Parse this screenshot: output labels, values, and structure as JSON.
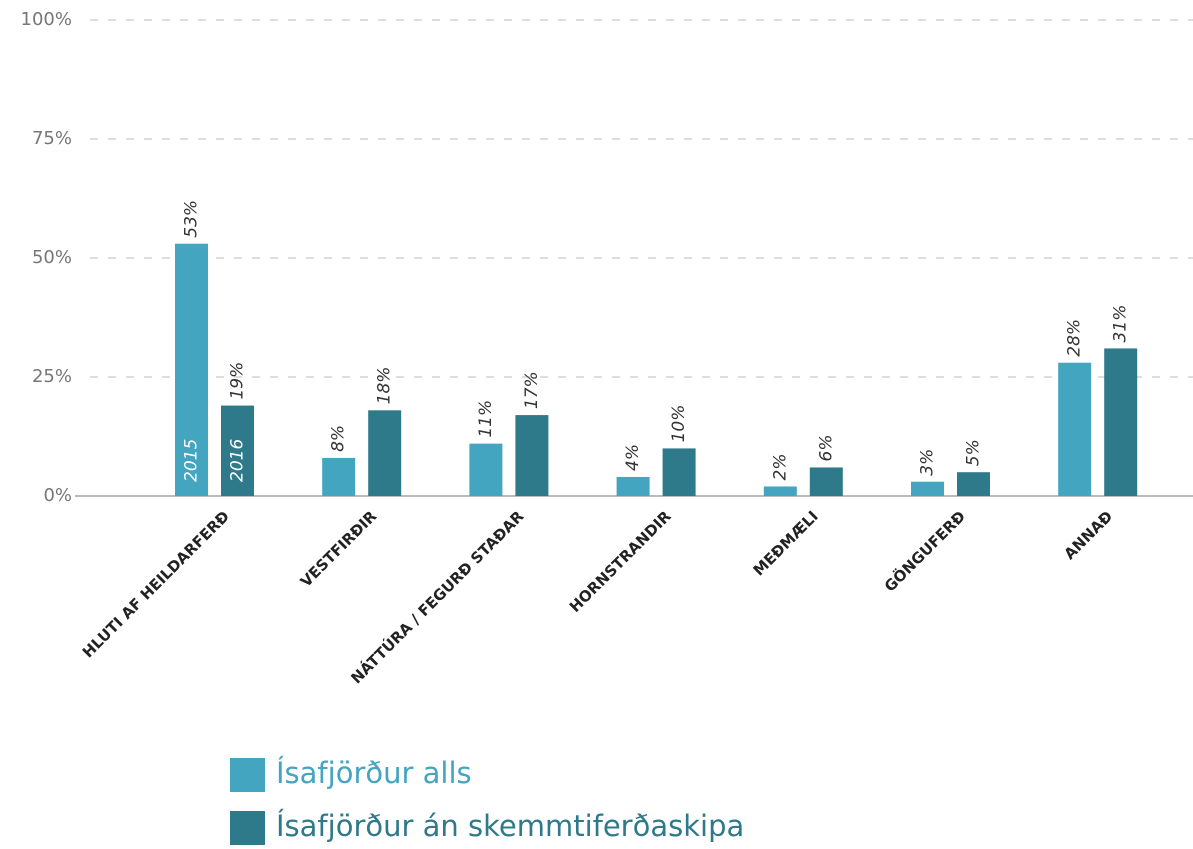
{
  "chart_data": {
    "type": "bar",
    "categories": [
      "HLUTI AF HEILDARFERÐ",
      "VESTFIRÐIR",
      "NÁTTÚRA / FEGURÐ STAÐAR",
      "HORNSTRANDIR",
      "MEÐMÆLI",
      "GÖNGUFERÐ",
      "ANNAÐ"
    ],
    "series": [
      {
        "name": "Ísafjörður alls",
        "color": "#43a5bf",
        "values": [
          53,
          8,
          11,
          4,
          2,
          3,
          28
        ],
        "value_labels": [
          "53%",
          "8%",
          "11%",
          "4%",
          "2%",
          "3%",
          "28%"
        ]
      },
      {
        "name": "Ísafjörður án skemmtiferðaskipa",
        "color": "#2f7a8a",
        "values": [
          19,
          18,
          17,
          10,
          6,
          5,
          31
        ],
        "value_labels": [
          "19%",
          "18%",
          "17%",
          "10%",
          "6%",
          "5%",
          "31%"
        ]
      }
    ],
    "annotations": [
      "2015",
      "2016"
    ],
    "ylim": [
      0,
      100
    ],
    "yticks": [
      {
        "value": 0,
        "label": "0%"
      },
      {
        "value": 25,
        "label": "25%"
      },
      {
        "value": 50,
        "label": "50%"
      },
      {
        "value": 75,
        "label": "75%"
      },
      {
        "value": 100,
        "label": "100%"
      }
    ],
    "grid": true
  }
}
